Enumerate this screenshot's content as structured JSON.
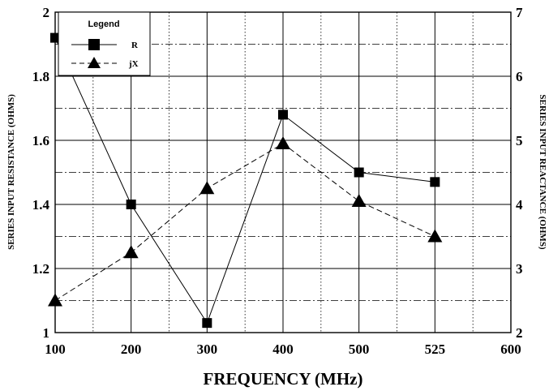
{
  "chart_data": {
    "type": "line",
    "xlabel": "FREQUENCY (MHz)",
    "ylabel_left": "SERIES INPUT RESISTANCE (OHMS)",
    "ylabel_right": "SERIES INPUT REACTANCE (OHMS)",
    "x_ticks": [
      "100",
      "200",
      "300",
      "400",
      "500",
      "525",
      "600"
    ],
    "ylim_left": [
      1,
      2
    ],
    "ylim_right": [
      2,
      7
    ],
    "left_ticks": [
      "1",
      "1.2",
      "1.4",
      "1.6",
      "1.8",
      "2"
    ],
    "right_ticks": [
      "2",
      "3",
      "4",
      "5",
      "6",
      "7"
    ],
    "grid": true,
    "legend": {
      "title": "Legend",
      "placement": "top-left"
    },
    "series": [
      {
        "name": "R",
        "axis": "left",
        "marker": "square",
        "line": "solid",
        "x": [
          "100",
          "200",
          "300",
          "400",
          "500",
          "525"
        ],
        "values": [
          1.92,
          1.4,
          1.03,
          1.68,
          1.5,
          1.47
        ]
      },
      {
        "name": "jX",
        "axis": "right",
        "marker": "triangle",
        "line": "dashed",
        "x": [
          "100",
          "200",
          "300",
          "400",
          "500",
          "525"
        ],
        "values": [
          2.5,
          3.25,
          4.25,
          4.95,
          4.05,
          3.5
        ]
      }
    ]
  }
}
